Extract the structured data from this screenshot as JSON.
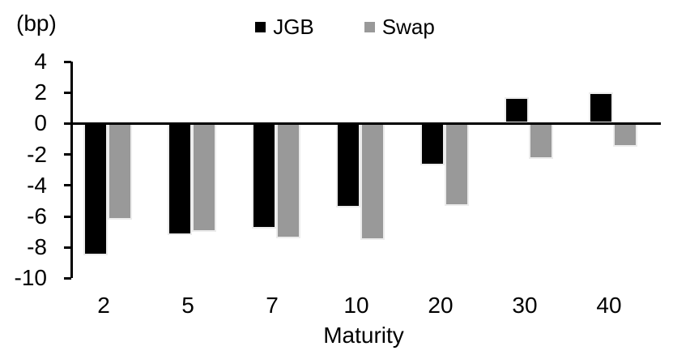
{
  "bp_label": "(bp)",
  "legend": {
    "items": [
      {
        "label": "JGB",
        "color": "#000000"
      },
      {
        "label": "Swap",
        "color": "#999999"
      }
    ]
  },
  "xaxis": {
    "title": "Maturity"
  },
  "colors": {
    "axis": "#000000",
    "bar_border": "#ececec",
    "jgb": "#000000",
    "swap": "#999999"
  },
  "chart_data": {
    "type": "bar",
    "title": "",
    "categories": [
      "2",
      "5",
      "7",
      "10",
      "20",
      "30",
      "40"
    ],
    "series": [
      {
        "name": "JGB",
        "color": "#000000",
        "values": [
          -8.5,
          -7.2,
          -6.8,
          -5.4,
          -2.7,
          1.7,
          2.0
        ]
      },
      {
        "name": "Swap",
        "color": "#999999",
        "values": [
          -6.2,
          -7.0,
          -7.4,
          -7.5,
          -5.3,
          -2.3,
          -1.5
        ]
      }
    ],
    "xlabel": "Maturity",
    "ylabel": "(bp)",
    "ylim": [
      -10,
      4
    ],
    "ytick_step": 2,
    "grid": false,
    "legend_position": "top-center"
  }
}
